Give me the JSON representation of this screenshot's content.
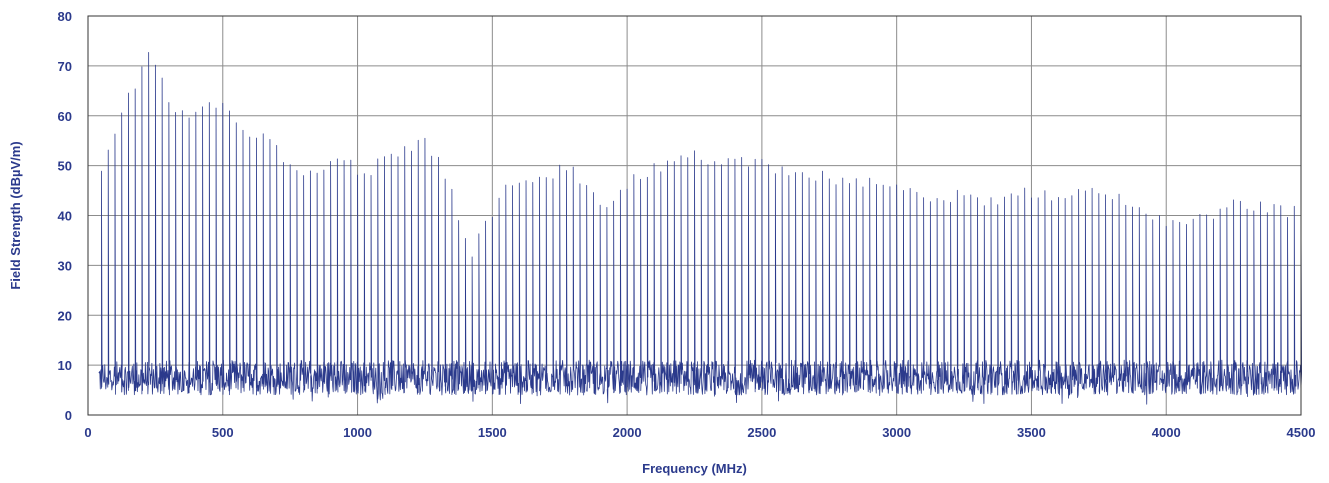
{
  "chart_data": {
    "type": "line",
    "title": "",
    "xlabel": "Frequency (MHz)",
    "ylabel": "Field Strength (dBµV/m)",
    "xlim": [
      0,
      4500
    ],
    "ylim": [
      0,
      80
    ],
    "xticks": [
      0,
      500,
      1000,
      1500,
      2000,
      2500,
      3000,
      3500,
      4000,
      4500
    ],
    "yticks": [
      0,
      10,
      20,
      30,
      40,
      50,
      60,
      70,
      80
    ],
    "grid": true,
    "legend": "none",
    "series_color": "#2b3a8c",
    "noise_floor_range": [
      4,
      11
    ],
    "harmonic_spacing_mhz": 25,
    "harmonic_peak_envelope": {
      "x": [
        50,
        100,
        150,
        200,
        230,
        260,
        300,
        350,
        400,
        450,
        500,
        550,
        600,
        650,
        700,
        750,
        800,
        850,
        900,
        950,
        1000,
        1050,
        1100,
        1150,
        1200,
        1250,
        1300,
        1350,
        1380,
        1400,
        1430,
        1450,
        1500,
        1550,
        1600,
        1650,
        1700,
        1750,
        1800,
        1850,
        1900,
        1950,
        2000,
        2050,
        2100,
        2150,
        2200,
        2250,
        2300,
        2350,
        2400,
        2450,
        2500,
        2550,
        2600,
        2650,
        2700,
        2750,
        2800,
        2850,
        2900,
        2950,
        3000,
        3050,
        3100,
        3150,
        3200,
        3250,
        3300,
        3350,
        3400,
        3450,
        3500,
        3550,
        3600,
        3650,
        3700,
        3750,
        3800,
        3850,
        3900,
        3950,
        4000,
        4050,
        4100,
        4150,
        4200,
        4250,
        4300,
        4350,
        4400,
        4450,
        4500
      ],
      "y": [
        48,
        56,
        64,
        69,
        72,
        70,
        64,
        60,
        61,
        63,
        62,
        58,
        57,
        57,
        53,
        51,
        48,
        48,
        52,
        52,
        48,
        49,
        52,
        53,
        54,
        54,
        52,
        45,
        38,
        34,
        33,
        35,
        41,
        46,
        47,
        48,
        48,
        49,
        49,
        45,
        42,
        44,
        46,
        48,
        49,
        51,
        52,
        52,
        51,
        51,
        51,
        51,
        50,
        49,
        49,
        48,
        48,
        47,
        47,
        47,
        46,
        46,
        45,
        44,
        44,
        44,
        44,
        44,
        43,
        43,
        44,
        44,
        44,
        44,
        44,
        44,
        44,
        45,
        44,
        42,
        41,
        40,
        39,
        38,
        38,
        40,
        41,
        42,
        42,
        42,
        42,
        41,
        42
      ]
    }
  }
}
